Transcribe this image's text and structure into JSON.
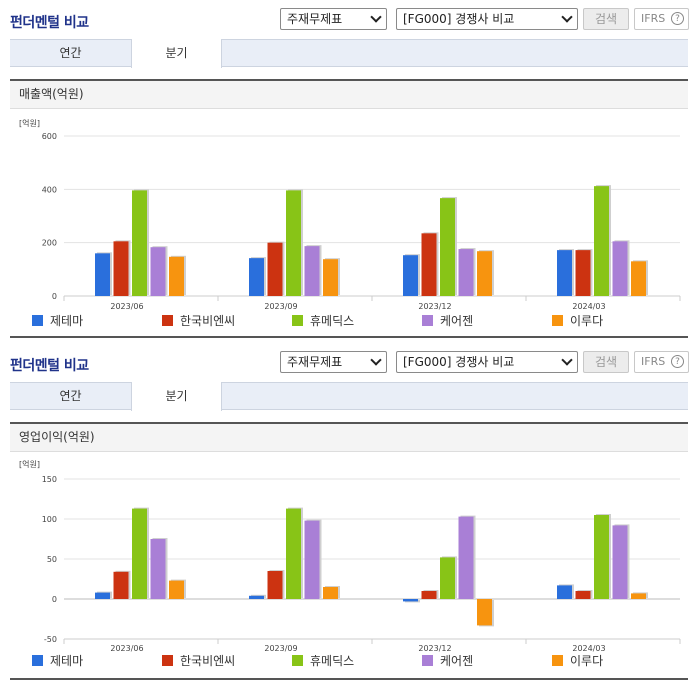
{
  "panels": [
    {
      "title": "펀더멘털 비교",
      "select1": "주재무제표",
      "select2": "[FG000] 경쟁사 비교",
      "search_label": "검색",
      "ifrs_label": "IFRS",
      "help_icon_text": "?",
      "tabs": [
        "연간",
        "분기"
      ],
      "subtitle": "매출액(억원)",
      "unit": "[억원]"
    },
    {
      "title": "펀더멘털 비교",
      "select1": "주재무제표",
      "select2": "[FG000] 경쟁사 비교",
      "search_label": "검색",
      "ifrs_label": "IFRS",
      "help_icon_text": "?",
      "tabs": [
        "연간",
        "분기"
      ],
      "subtitle": "영업이익(억원)",
      "unit": "[억원]"
    }
  ],
  "colors": {
    "series": [
      "#2a6fdc",
      "#cc3311",
      "#88c417",
      "#a97fd6",
      "#f7940f"
    ],
    "title": "#20338a"
  },
  "chart_data": [
    {
      "type": "bar",
      "title": "매출액(억원)",
      "ylabel": "[억원]",
      "categories": [
        "2023/06",
        "2023/09",
        "2023/12",
        "2024/03"
      ],
      "ylim": [
        0,
        600
      ],
      "yticks": [
        0,
        200,
        400,
        600
      ],
      "grid": true,
      "legend": "bottom",
      "series": [
        {
          "name": "제테마",
          "values": [
            160,
            142,
            153,
            172
          ]
        },
        {
          "name": "한국비엔씨",
          "values": [
            205,
            200,
            235,
            172
          ]
        },
        {
          "name": "휴메딕스",
          "values": [
            396,
            396,
            367,
            412
          ]
        },
        {
          "name": "케어젠",
          "values": [
            183,
            187,
            176,
            205
          ]
        },
        {
          "name": "이루다",
          "values": [
            147,
            138,
            168,
            130
          ]
        }
      ]
    },
    {
      "type": "bar",
      "title": "영업이익(억원)",
      "ylabel": "[억원]",
      "categories": [
        "2023/06",
        "2023/09",
        "2023/12",
        "2024/03"
      ],
      "ylim": [
        -50,
        150
      ],
      "yticks": [
        -50,
        0,
        50,
        100,
        150
      ],
      "grid": true,
      "legend": "bottom",
      "series": [
        {
          "name": "제테마",
          "values": [
            8,
            4,
            -3,
            17
          ]
        },
        {
          "name": "한국비엔씨",
          "values": [
            34,
            35,
            10,
            10
          ]
        },
        {
          "name": "휴메딕스",
          "values": [
            113,
            113,
            52,
            105
          ]
        },
        {
          "name": "케어젠",
          "values": [
            75,
            98,
            103,
            92
          ]
        },
        {
          "name": "이루다",
          "values": [
            23,
            15,
            -33,
            7
          ]
        }
      ]
    }
  ]
}
